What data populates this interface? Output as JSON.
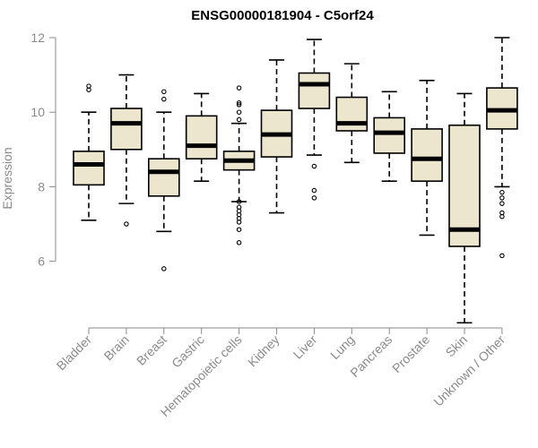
{
  "chart_data": {
    "type": "boxplot",
    "title": "ENSG00000181904 - C5orf24",
    "xlabel": "",
    "ylabel": "Expression",
    "ylim": [
      4.2,
      12.1
    ],
    "yticks": [
      6,
      8,
      10,
      12
    ],
    "box_color": "#ede6cf",
    "categories": [
      "Bladder",
      "Brain",
      "Breast",
      "Gastric",
      "Hematopoietic cells",
      "Kidney",
      "Liver",
      "Lung",
      "Pancreas",
      "Prostate",
      "Skin",
      "Unknown / Other"
    ],
    "boxes": [
      {
        "min": 7.1,
        "q1": 8.05,
        "median": 8.6,
        "q3": 8.95,
        "max": 10.0,
        "outliers": [
          10.6,
          10.7
        ]
      },
      {
        "min": 7.55,
        "q1": 9.0,
        "median": 9.7,
        "q3": 10.1,
        "max": 11.0,
        "outliers": [
          7.0
        ]
      },
      {
        "min": 6.8,
        "q1": 7.75,
        "median": 8.4,
        "q3": 8.75,
        "max": 10.0,
        "outliers": [
          10.35,
          10.55,
          5.8
        ]
      },
      {
        "min": 8.15,
        "q1": 8.75,
        "median": 9.1,
        "q3": 9.9,
        "max": 10.5,
        "outliers": []
      },
      {
        "min": 7.6,
        "q1": 8.45,
        "median": 8.7,
        "q3": 8.95,
        "max": 9.7,
        "outliers": [
          9.8,
          10.0,
          10.2,
          10.25,
          10.65,
          7.6,
          7.45,
          7.35,
          7.25,
          7.15,
          7.05,
          6.85,
          6.5
        ]
      },
      {
        "min": 7.3,
        "q1": 8.8,
        "median": 9.4,
        "q3": 10.05,
        "max": 11.4,
        "outliers": []
      },
      {
        "min": 8.85,
        "q1": 10.1,
        "median": 10.75,
        "q3": 11.05,
        "max": 11.95,
        "outliers": [
          8.55,
          7.9,
          7.7
        ]
      },
      {
        "min": 8.65,
        "q1": 9.5,
        "median": 9.7,
        "q3": 10.4,
        "max": 11.3,
        "outliers": []
      },
      {
        "min": 8.15,
        "q1": 8.9,
        "median": 9.45,
        "q3": 9.85,
        "max": 10.55,
        "outliers": []
      },
      {
        "min": 6.7,
        "q1": 8.15,
        "median": 8.75,
        "q3": 9.55,
        "max": 10.85,
        "outliers": []
      },
      {
        "min": 4.35,
        "q1": 6.4,
        "median": 6.85,
        "q3": 9.65,
        "max": 10.5,
        "outliers": []
      },
      {
        "min": 8.0,
        "q1": 9.55,
        "median": 10.05,
        "q3": 10.65,
        "max": 12.0,
        "outliers": [
          7.85,
          7.7,
          7.55,
          7.3,
          7.2,
          6.15
        ]
      }
    ]
  }
}
